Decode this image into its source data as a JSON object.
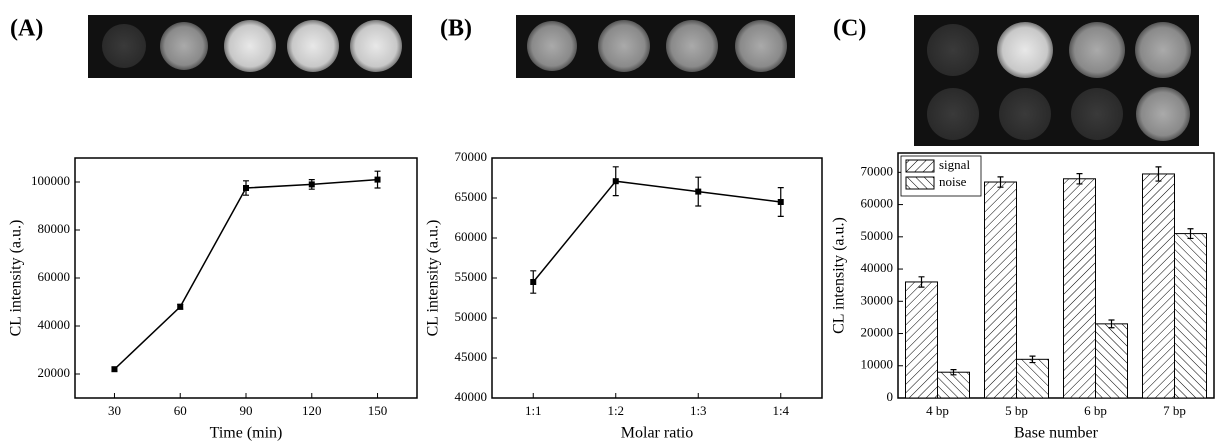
{
  "chart_data": [
    {
      "type": "line",
      "panel_label": "(A)",
      "x_label": "Time (min)",
      "y_label": "CL intensity (a.u.)",
      "x": [
        30,
        60,
        90,
        120,
        150
      ],
      "values": [
        22000,
        48000,
        97500,
        99000,
        101000
      ],
      "errors": [
        800,
        1000,
        3000,
        2000,
        3500
      ],
      "color": "#000000",
      "xlim": [
        12,
        168
      ],
      "xticks": [
        30,
        60,
        90,
        120,
        150
      ],
      "ylim": [
        10000,
        110000
      ],
      "yticks": [
        20000,
        40000,
        60000,
        80000,
        100000
      ]
    },
    {
      "type": "line",
      "panel_label": "(B)",
      "x_label": "Molar ratio",
      "y_label": "CL intensity (a.u.)",
      "categories": [
        "1:1",
        "1:2",
        "1:3",
        "1:4"
      ],
      "values": [
        54500,
        67100,
        65800,
        64500
      ],
      "errors": [
        1400,
        1800,
        1800,
        1800
      ],
      "color": "#000000",
      "ylim": [
        40000,
        70000
      ],
      "yticks": [
        40000,
        45000,
        50000,
        55000,
        60000,
        65000,
        70000
      ]
    },
    {
      "type": "bar",
      "panel_label": "(C)",
      "x_label": "Base number",
      "y_label": "CL intensity (a.u.)",
      "categories": [
        "4 bp",
        "5 bp",
        "6 bp",
        "7 bp"
      ],
      "series": [
        {
          "name": "signal",
          "color": "#000000",
          "hatch": "forward",
          "values": [
            36000,
            67000,
            68000,
            69500
          ],
          "errors": [
            1600,
            1600,
            1600,
            2200
          ]
        },
        {
          "name": "noise",
          "color": "#000000",
          "hatch": "backward",
          "values": [
            8000,
            12000,
            23000,
            51000
          ],
          "errors": [
            800,
            1000,
            1200,
            1500
          ]
        }
      ],
      "ylim": [
        0,
        76000
      ],
      "yticks": [
        0,
        10000,
        20000,
        30000,
        40000,
        50000,
        60000,
        70000
      ],
      "legend": "upper left"
    }
  ]
}
